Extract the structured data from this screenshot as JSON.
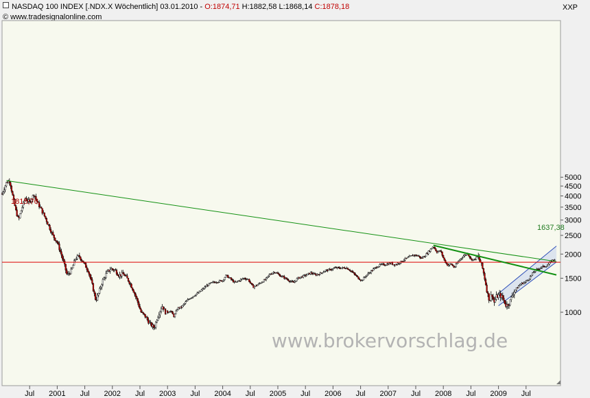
{
  "header": {
    "instrument": "NASDAQ 100 INDEX [.NDX.X  Wöchentlich] 03.01.2010 - ",
    "open": "O:1874,71",
    "hl": " H:1882,58 L:1868,14 ",
    "close": "C:1878,18",
    "copyright": "© www.tradesignalonline.com",
    "right_label": "XXP"
  },
  "watermark": "www.brokervorschlag.de",
  "colors": {
    "plot_bg": "#f7f9ee",
    "up_candle": "#ffffff",
    "down_candle": "#c00000",
    "candle_outline": "#000000",
    "trendline": "#119011",
    "support": "#dd0000",
    "channel_fill": "#c7d3ef",
    "channel_edge": "#3050b8"
  },
  "chart_data": {
    "type": "candlestick",
    "title": "NASDAQ 100 INDEX [.NDX.X  Wöchentlich]",
    "y_scale": "log",
    "ylim": [
      700,
      5500
    ],
    "y_ticks": [
      "5000",
      "4500",
      "4000",
      "3500",
      "3000",
      "2500",
      "2000",
      "1500",
      "1000"
    ],
    "y_tick_values": [
      5000,
      4500,
      4000,
      3500,
      3000,
      2500,
      2000,
      1500,
      1000
    ],
    "x_ticks": [
      "Jul",
      "2001",
      "Jul",
      "2002",
      "Jul",
      "2003",
      "Jul",
      "2004",
      "Jul",
      "2005",
      "Jul",
      "2006",
      "Jul",
      "2007",
      "Jul",
      "2008",
      "Jul",
      "2009",
      "Jul"
    ],
    "x_tick_values": [
      2000.5,
      2001.0,
      2001.5,
      2002.0,
      2002.5,
      2003.0,
      2003.5,
      2004.0,
      2004.5,
      2005.0,
      2005.5,
      2006.0,
      2006.5,
      2007.0,
      2007.5,
      2008.0,
      2008.5,
      2009.0,
      2009.5
    ],
    "xlim": [
      2000.0,
      2010.05
    ],
    "price_path": [
      [
        2000.0,
        4100
      ],
      [
        2000.08,
        4700
      ],
      [
        2000.14,
        4800
      ],
      [
        2000.2,
        3900
      ],
      [
        2000.25,
        3350
      ],
      [
        2000.3,
        3000
      ],
      [
        2000.35,
        3400
      ],
      [
        2000.42,
        3900
      ],
      [
        2000.5,
        3700
      ],
      [
        2000.58,
        4100
      ],
      [
        2000.64,
        3700
      ],
      [
        2000.7,
        3450
      ],
      [
        2000.78,
        3100
      ],
      [
        2000.86,
        2750
      ],
      [
        2000.92,
        2500
      ],
      [
        2001.0,
        2300
      ],
      [
        2001.06,
        2050
      ],
      [
        2001.12,
        1800
      ],
      [
        2001.18,
        1550
      ],
      [
        2001.26,
        1650
      ],
      [
        2001.33,
        1900
      ],
      [
        2001.4,
        1950
      ],
      [
        2001.48,
        1800
      ],
      [
        2001.56,
        1650
      ],
      [
        2001.63,
        1400
      ],
      [
        2001.7,
        1150
      ],
      [
        2001.75,
        1250
      ],
      [
        2001.82,
        1450
      ],
      [
        2001.9,
        1600
      ],
      [
        2001.97,
        1680
      ],
      [
        2002.05,
        1650
      ],
      [
        2002.12,
        1550
      ],
      [
        2002.2,
        1580
      ],
      [
        2002.3,
        1450
      ],
      [
        2002.38,
        1300
      ],
      [
        2002.45,
        1150
      ],
      [
        2002.52,
        1000
      ],
      [
        2002.6,
        950
      ],
      [
        2002.68,
        870
      ],
      [
        2002.76,
        830
      ],
      [
        2002.82,
        950
      ],
      [
        2002.9,
        1080
      ],
      [
        2002.97,
        990
      ],
      [
        2003.05,
        1020
      ],
      [
        2003.12,
        950
      ],
      [
        2003.18,
        1050
      ],
      [
        2003.25,
        1060
      ],
      [
        2003.33,
        1130
      ],
      [
        2003.4,
        1180
      ],
      [
        2003.48,
        1220
      ],
      [
        2003.56,
        1260
      ],
      [
        2003.64,
        1320
      ],
      [
        2003.72,
        1380
      ],
      [
        2003.8,
        1420
      ],
      [
        2003.9,
        1440
      ],
      [
        2004.0,
        1460
      ],
      [
        2004.06,
        1550
      ],
      [
        2004.14,
        1490
      ],
      [
        2004.22,
        1420
      ],
      [
        2004.3,
        1460
      ],
      [
        2004.38,
        1500
      ],
      [
        2004.46,
        1480
      ],
      [
        2004.55,
        1350
      ],
      [
        2004.62,
        1380
      ],
      [
        2004.7,
        1430
      ],
      [
        2004.78,
        1480
      ],
      [
        2004.86,
        1580
      ],
      [
        2004.95,
        1620
      ],
      [
        2005.02,
        1560
      ],
      [
        2005.1,
        1520
      ],
      [
        2005.2,
        1460
      ],
      [
        2005.28,
        1420
      ],
      [
        2005.36,
        1500
      ],
      [
        2005.44,
        1530
      ],
      [
        2005.52,
        1560
      ],
      [
        2005.6,
        1600
      ],
      [
        2005.68,
        1560
      ],
      [
        2005.76,
        1580
      ],
      [
        2005.85,
        1640
      ],
      [
        2005.95,
        1660
      ],
      [
        2006.05,
        1700
      ],
      [
        2006.14,
        1690
      ],
      [
        2006.24,
        1700
      ],
      [
        2006.32,
        1640
      ],
      [
        2006.4,
        1560
      ],
      [
        2006.46,
        1500
      ],
      [
        2006.52,
        1460
      ],
      [
        2006.6,
        1550
      ],
      [
        2006.7,
        1640
      ],
      [
        2006.78,
        1710
      ],
      [
        2006.86,
        1760
      ],
      [
        2006.96,
        1770
      ],
      [
        2007.05,
        1790
      ],
      [
        2007.12,
        1760
      ],
      [
        2007.2,
        1800
      ],
      [
        2007.3,
        1880
      ],
      [
        2007.38,
        1930
      ],
      [
        2007.46,
        1980
      ],
      [
        2007.54,
        1960
      ],
      [
        2007.6,
        1900
      ],
      [
        2007.68,
        1980
      ],
      [
        2007.76,
        2100
      ],
      [
        2007.82,
        2200
      ],
      [
        2007.88,
        2050
      ],
      [
        2007.95,
        2080
      ],
      [
        2008.02,
        1850
      ],
      [
        2008.08,
        1750
      ],
      [
        2008.14,
        1780
      ],
      [
        2008.2,
        1700
      ],
      [
        2008.28,
        1850
      ],
      [
        2008.36,
        1950
      ],
      [
        2008.44,
        2020
      ],
      [
        2008.5,
        1880
      ],
      [
        2008.56,
        1870
      ],
      [
        2008.62,
        1950
      ],
      [
        2008.68,
        1800
      ],
      [
        2008.72,
        1650
      ],
      [
        2008.76,
        1450
      ],
      [
        2008.8,
        1250
      ],
      [
        2008.84,
        1150
      ],
      [
        2008.88,
        1250
      ],
      [
        2008.92,
        1120
      ],
      [
        2008.96,
        1200
      ],
      [
        2009.02,
        1230
      ],
      [
        2009.08,
        1180
      ],
      [
        2009.14,
        1080
      ],
      [
        2009.2,
        1120
      ],
      [
        2009.26,
        1250
      ],
      [
        2009.33,
        1330
      ],
      [
        2009.4,
        1400
      ],
      [
        2009.48,
        1430
      ],
      [
        2009.56,
        1500
      ],
      [
        2009.64,
        1620
      ],
      [
        2009.72,
        1680
      ],
      [
        2009.8,
        1720
      ],
      [
        2009.88,
        1740
      ],
      [
        2009.95,
        1830
      ],
      [
        2010.01,
        1878
      ]
    ],
    "horizontal_line": {
      "value": 1815.76,
      "label": "1815,76"
    },
    "trendlines": [
      {
        "from": [
          2000.08,
          4800
        ],
        "to": [
          2010.05,
          1830
        ]
      },
      {
        "from": [
          2007.82,
          2220
        ],
        "to": [
          2010.05,
          1560
        ]
      }
    ],
    "channel": {
      "lower": {
        "from": [
          2009.0,
          1080
        ],
        "to": [
          2010.05,
          1820
        ]
      },
      "upper": {
        "from": [
          2009.0,
          1250
        ],
        "to": [
          2010.05,
          2200
        ]
      }
    },
    "channel_label": "1637,38",
    "grid": false,
    "legend": "none"
  }
}
